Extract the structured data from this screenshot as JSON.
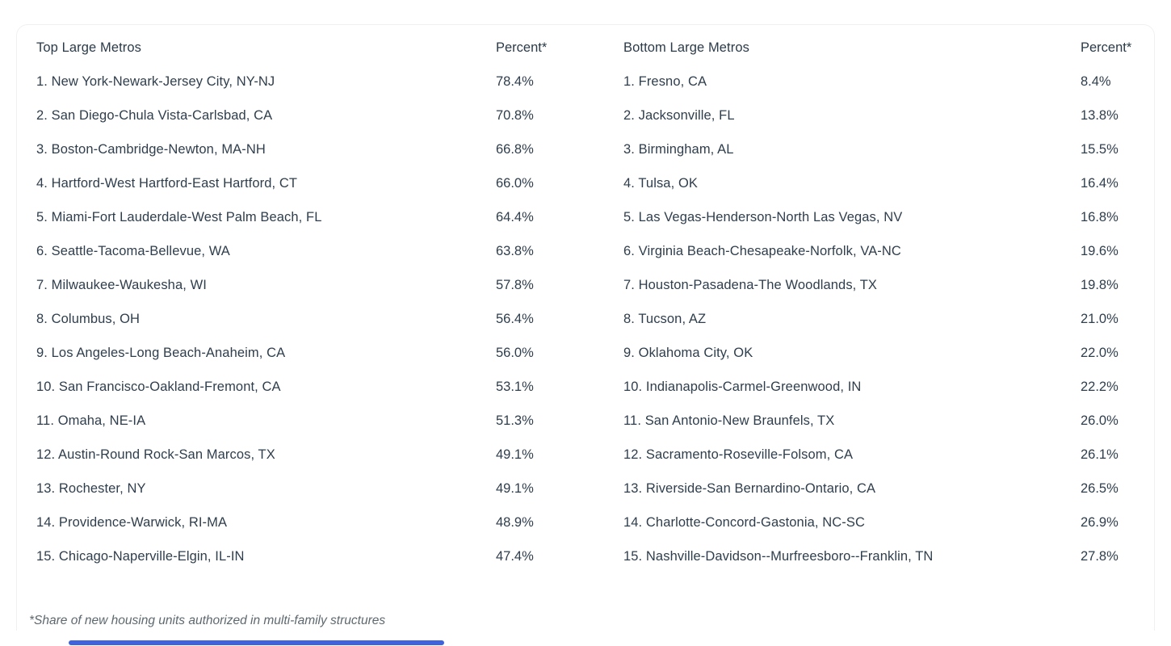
{
  "colors": {
    "text": "#2F3E4C",
    "footnote_text": "#5D686F",
    "accent_bar_blue": "#3E63DD",
    "card_border": "#F0F0F0"
  },
  "footnote": {
    "text": "*Share of new housing units authorized in multi-family structures"
  },
  "tables": {
    "top": {
      "title": "Top Large Metros",
      "percent_header": "Percent*",
      "rows": [
        {
          "label": "1. New York-Newark-Jersey City, NY-NJ",
          "percent": "78.4%"
        },
        {
          "label": "2. San Diego-Chula Vista-Carlsbad, CA",
          "percent": "70.8%"
        },
        {
          "label": "3. Boston-Cambridge-Newton, MA-NH",
          "percent": "66.8%"
        },
        {
          "label": "4. Hartford-West Hartford-East Hartford, CT",
          "percent": "66.0%"
        },
        {
          "label": "5. Miami-Fort Lauderdale-West Palm Beach, FL",
          "percent": "64.4%"
        },
        {
          "label": "6. Seattle-Tacoma-Bellevue, WA",
          "percent": "63.8%"
        },
        {
          "label": "7. Milwaukee-Waukesha, WI",
          "percent": "57.8%"
        },
        {
          "label": "8. Columbus, OH",
          "percent": "56.4%"
        },
        {
          "label": "9. Los Angeles-Long Beach-Anaheim, CA",
          "percent": "56.0%"
        },
        {
          "label": "10. San Francisco-Oakland-Fremont, CA",
          "percent": "53.1%"
        },
        {
          "label": "11. Omaha, NE-IA",
          "percent": "51.3%"
        },
        {
          "label": "12. Austin-Round Rock-San Marcos, TX",
          "percent": "49.1%"
        },
        {
          "label": "13. Rochester, NY",
          "percent": "49.1%"
        },
        {
          "label": "14. Providence-Warwick, RI-MA",
          "percent": "48.9%"
        },
        {
          "label": "15. Chicago-Naperville-Elgin, IL-IN",
          "percent": "47.4%"
        }
      ]
    },
    "bottom": {
      "title": "Bottom Large Metros",
      "percent_header": "Percent*",
      "rows": [
        {
          "label": "1. Fresno, CA",
          "percent": "8.4%"
        },
        {
          "label": "2. Jacksonville, FL",
          "percent": "13.8%"
        },
        {
          "label": "3. Birmingham, AL",
          "percent": "15.5%"
        },
        {
          "label": "4. Tulsa, OK",
          "percent": "16.4%"
        },
        {
          "label": "5. Las Vegas-Henderson-North Las Vegas, NV",
          "percent": "16.8%"
        },
        {
          "label": "6. Virginia Beach-Chesapeake-Norfolk, VA-NC",
          "percent": "19.6%"
        },
        {
          "label": "7. Houston-Pasadena-The Woodlands, TX",
          "percent": "19.8%"
        },
        {
          "label": "8. Tucson, AZ",
          "percent": "21.0%"
        },
        {
          "label": "9. Oklahoma City, OK",
          "percent": "22.0%"
        },
        {
          "label": "10. Indianapolis-Carmel-Greenwood, IN",
          "percent": "22.2%"
        },
        {
          "label": "11. San Antonio-New Braunfels, TX",
          "percent": "26.0%"
        },
        {
          "label": "12. Sacramento-Roseville-Folsom, CA",
          "percent": "26.1%"
        },
        {
          "label": "13. Riverside-San Bernardino-Ontario, CA",
          "percent": "26.5%"
        },
        {
          "label": "14. Charlotte-Concord-Gastonia, NC-SC",
          "percent": "26.9%"
        },
        {
          "label": "15. Nashville-Davidson--Murfreesboro--Franklin, TN",
          "percent": "27.8%"
        }
      ]
    }
  },
  "chart_data": [
    {
      "type": "table",
      "title": "Top Large Metros",
      "columns": [
        "Metro",
        "Percent*"
      ],
      "categories": [
        "New York-Newark-Jersey City, NY-NJ",
        "San Diego-Chula Vista-Carlsbad, CA",
        "Boston-Cambridge-Newton, MA-NH",
        "Hartford-West Hartford-East Hartford, CT",
        "Miami-Fort Lauderdale-West Palm Beach, FL",
        "Seattle-Tacoma-Bellevue, WA",
        "Milwaukee-Waukesha, WI",
        "Columbus, OH",
        "Los Angeles-Long Beach-Anaheim, CA",
        "San Francisco-Oakland-Fremont, CA",
        "Omaha, NE-IA",
        "Austin-Round Rock-San Marcos, TX",
        "Rochester, NY",
        "Providence-Warwick, RI-MA",
        "Chicago-Naperville-Elgin, IL-IN"
      ],
      "values": [
        78.4,
        70.8,
        66.8,
        66.0,
        64.4,
        63.8,
        57.8,
        56.4,
        56.0,
        53.1,
        51.3,
        49.1,
        49.1,
        48.9,
        47.4
      ],
      "footnote": "*Share of new housing units authorized in multi-family structures"
    },
    {
      "type": "table",
      "title": "Bottom Large Metros",
      "columns": [
        "Metro",
        "Percent*"
      ],
      "categories": [
        "Fresno, CA",
        "Jacksonville, FL",
        "Birmingham, AL",
        "Tulsa, OK",
        "Las Vegas-Henderson-North Las Vegas, NV",
        "Virginia Beach-Chesapeake-Norfolk, VA-NC",
        "Houston-Pasadena-The Woodlands, TX",
        "Tucson, AZ",
        "Oklahoma City, OK",
        "Indianapolis-Carmel-Greenwood, IN",
        "San Antonio-New Braunfels, TX",
        "Sacramento-Roseville-Folsom, CA",
        "Riverside-San Bernardino-Ontario, CA",
        "Charlotte-Concord-Gastonia, NC-SC",
        "Nashville-Davidson--Murfreesboro--Franklin, TN"
      ],
      "values": [
        8.4,
        13.8,
        15.5,
        16.4,
        16.8,
        19.6,
        19.8,
        21.0,
        22.0,
        22.2,
        26.0,
        26.1,
        26.5,
        26.9,
        27.8
      ],
      "footnote": "*Share of new housing units authorized in multi-family structures"
    }
  ]
}
